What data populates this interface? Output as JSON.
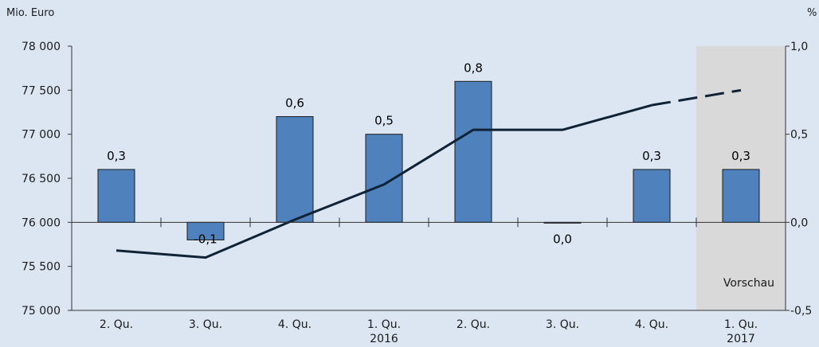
{
  "chart_data": {
    "type": "bar",
    "left_axis_label": "Mio. Euro",
    "right_axis_label": "%",
    "left_ylim": [
      75000,
      78000
    ],
    "left_ticks": [
      75000,
      75500,
      76000,
      76500,
      77000,
      77500,
      78000
    ],
    "left_tick_labels": [
      "75 000",
      "75 500",
      "76 000",
      "76 500",
      "77 000",
      "77 500",
      "78 000"
    ],
    "right_ylim": [
      -0.5,
      1.0
    ],
    "right_ticks": [
      -0.5,
      0.0,
      0.5,
      1.0
    ],
    "right_tick_labels": [
      "-0,5",
      "0,0",
      "0,5",
      "1,0"
    ],
    "categories": [
      {
        "line1": "2. Qu.",
        "line2": ""
      },
      {
        "line1": "3. Qu.",
        "line2": ""
      },
      {
        "line1": "4. Qu.",
        "line2": ""
      },
      {
        "line1": "1. Qu.",
        "line2": "2016"
      },
      {
        "line1": "2. Qu.",
        "line2": ""
      },
      {
        "line1": "3. Qu.",
        "line2": ""
      },
      {
        "line1": "4. Qu.",
        "line2": ""
      },
      {
        "line1": "1. Qu.",
        "line2": "2017"
      }
    ],
    "bar_series": {
      "axis": "right",
      "values": [
        0.3,
        -0.1,
        0.6,
        0.5,
        0.8,
        0.0,
        0.3,
        0.3
      ],
      "labels": [
        "0,3",
        "-0,1",
        "0,6",
        "0,5",
        "0,8",
        "0,0",
        "0,3",
        "0,3"
      ],
      "color": "#4f81bd"
    },
    "line_series": {
      "axis": "left",
      "values": [
        75680,
        75600,
        76030,
        76430,
        77050,
        77050,
        77330,
        77500
      ],
      "dashed_from_index": 6,
      "color": "#0f2236"
    },
    "forecast": {
      "label": "Vorschau",
      "start_index": 7,
      "shade_color": "#d9d9d9"
    },
    "grid": false
  }
}
